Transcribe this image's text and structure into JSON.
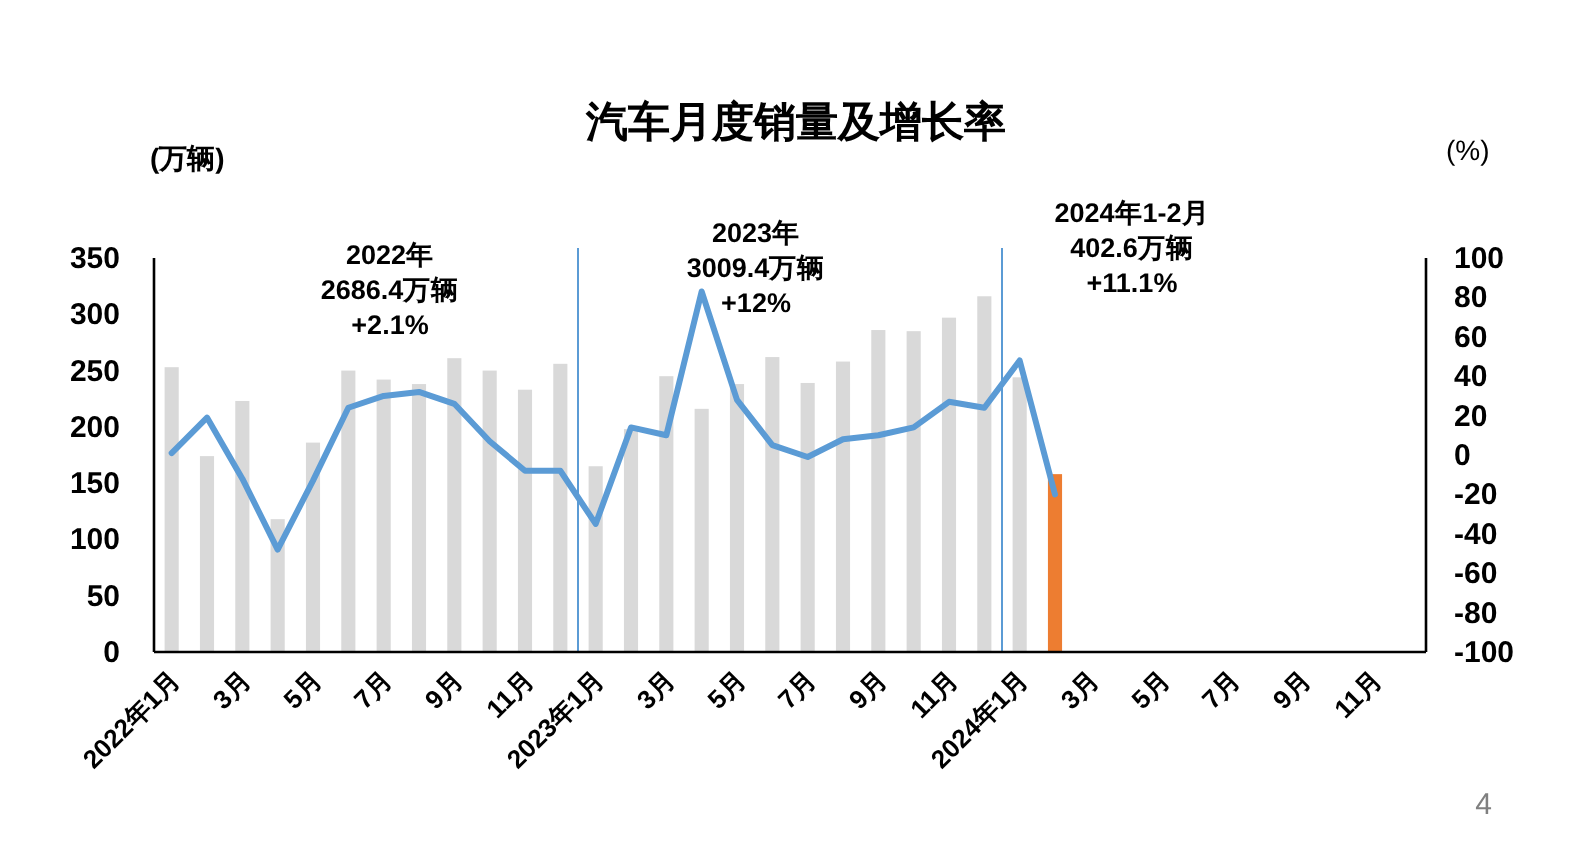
{
  "chart_data": {
    "type": "bar",
    "title": "汽车月度销量及增长率",
    "ylabel": "(万辆)",
    "y2label": "(%)",
    "categories": [
      "2022年1月",
      null,
      "3月",
      null,
      "5月",
      null,
      "7月",
      null,
      "9月",
      null,
      "11月",
      null,
      "2023年1月",
      null,
      "3月",
      null,
      "5月",
      null,
      "7月",
      null,
      "9月",
      null,
      "11月",
      null,
      "2024年1月",
      null,
      "3月",
      null,
      "5月",
      null,
      "7月",
      null,
      "9月",
      null,
      "11月",
      null
    ],
    "series": [
      {
        "colors": [
          "#d9d9d9",
          "#d9d9d9",
          "#d9d9d9",
          "#d9d9d9",
          "#d9d9d9",
          "#d9d9d9",
          "#d9d9d9",
          "#d9d9d9",
          "#d9d9d9",
          "#d9d9d9",
          "#d9d9d9",
          "#d9d9d9",
          "#d9d9d9",
          "#d9d9d9",
          "#d9d9d9",
          "#d9d9d9",
          "#d9d9d9",
          "#d9d9d9",
          "#d9d9d9",
          "#d9d9d9",
          "#d9d9d9",
          "#d9d9d9",
          "#d9d9d9",
          "#d9d9d9",
          "#d9d9d9",
          "#ed7d31",
          null,
          null,
          null,
          null,
          null,
          null,
          null,
          null,
          null,
          null
        ],
        "values": [
          253,
          174,
          223,
          118,
          186,
          250,
          242,
          238,
          261,
          250,
          233,
          256,
          165,
          198,
          245,
          216,
          238,
          262,
          239,
          258,
          286,
          285,
          297,
          316,
          244,
          158,
          null,
          null,
          null,
          null,
          null,
          null,
          null,
          null,
          null,
          null
        ]
      },
      {
        "type": "line",
        "axis": "y2",
        "color": "#5b9bd5",
        "values": [
          1,
          19,
          -12,
          -48,
          -13,
          24,
          30,
          32,
          26,
          7,
          -8,
          -8,
          -35,
          14,
          10,
          83,
          28,
          5,
          -1,
          8,
          10,
          14,
          27,
          24,
          48,
          -20,
          null,
          null,
          null,
          null,
          null,
          null,
          null,
          null,
          null,
          null
        ]
      }
    ],
    "ylim": [
      0,
      350
    ],
    "yticks": [
      0,
      50,
      100,
      150,
      200,
      250,
      300,
      350
    ],
    "y2lim": [
      -100,
      100
    ],
    "y2ticks": [
      -100,
      -80,
      -60,
      -40,
      -20,
      0,
      20,
      40,
      60,
      80,
      100
    ],
    "marker": "none",
    "annotations": [
      "2022年\n2686.4万辆\n+2.1%",
      "2023年\n3009.4万辆\n+12%",
      "2024年1-2月\n402.6万辆\n+11.1%",
      "4"
    ]
  }
}
